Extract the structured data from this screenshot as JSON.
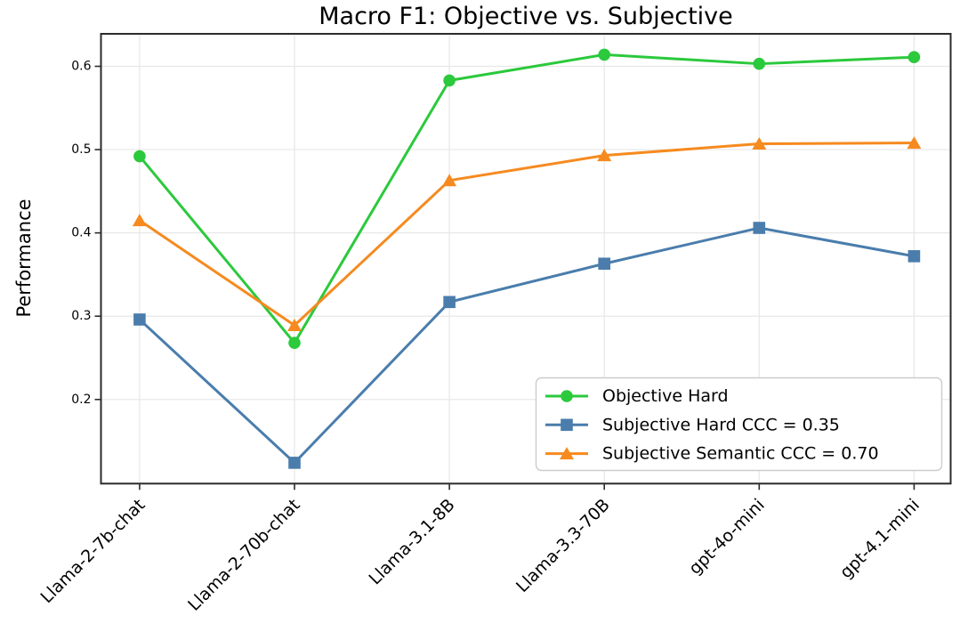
{
  "chart_data": {
    "type": "line",
    "title": "Macro F1: Objective vs. Subjective",
    "ylabel": "Performance",
    "xlabel": "",
    "categories": [
      "Llama-2-7b-chat",
      "Llama-2-70b-chat",
      "Llama-3.1-8B",
      "Llama-3.3-70B",
      "gpt-4o-mini",
      "gpt-4.1-mini"
    ],
    "series": [
      {
        "name": "Objective Hard",
        "marker": "circle",
        "color": "#2BC93C",
        "values": [
          0.492,
          0.268,
          0.583,
          0.614,
          0.603,
          0.611
        ]
      },
      {
        "name": "Subjective Hard CCC = 0.35",
        "marker": "square",
        "color": "#4A7DAC",
        "values": [
          0.296,
          0.124,
          0.317,
          0.363,
          0.406,
          0.372
        ]
      },
      {
        "name": "Subjective Semantic CCC = 0.70",
        "marker": "triangle",
        "color": "#F68A1F",
        "values": [
          0.415,
          0.289,
          0.463,
          0.493,
          0.507,
          0.508
        ]
      }
    ],
    "yticks": [
      0.2,
      0.3,
      0.4,
      0.5,
      0.6
    ],
    "ylim": [
      0.099,
      0.639
    ],
    "grid": true,
    "legend_position": "lower-right-inside"
  },
  "colors": {
    "background": "#FFFFFF",
    "grid": "#E7E7E7",
    "spine": "#2B2B2B",
    "text": "#000000",
    "legend_border": "#CCCCCC",
    "legend_fill": "#FFFFFF"
  }
}
